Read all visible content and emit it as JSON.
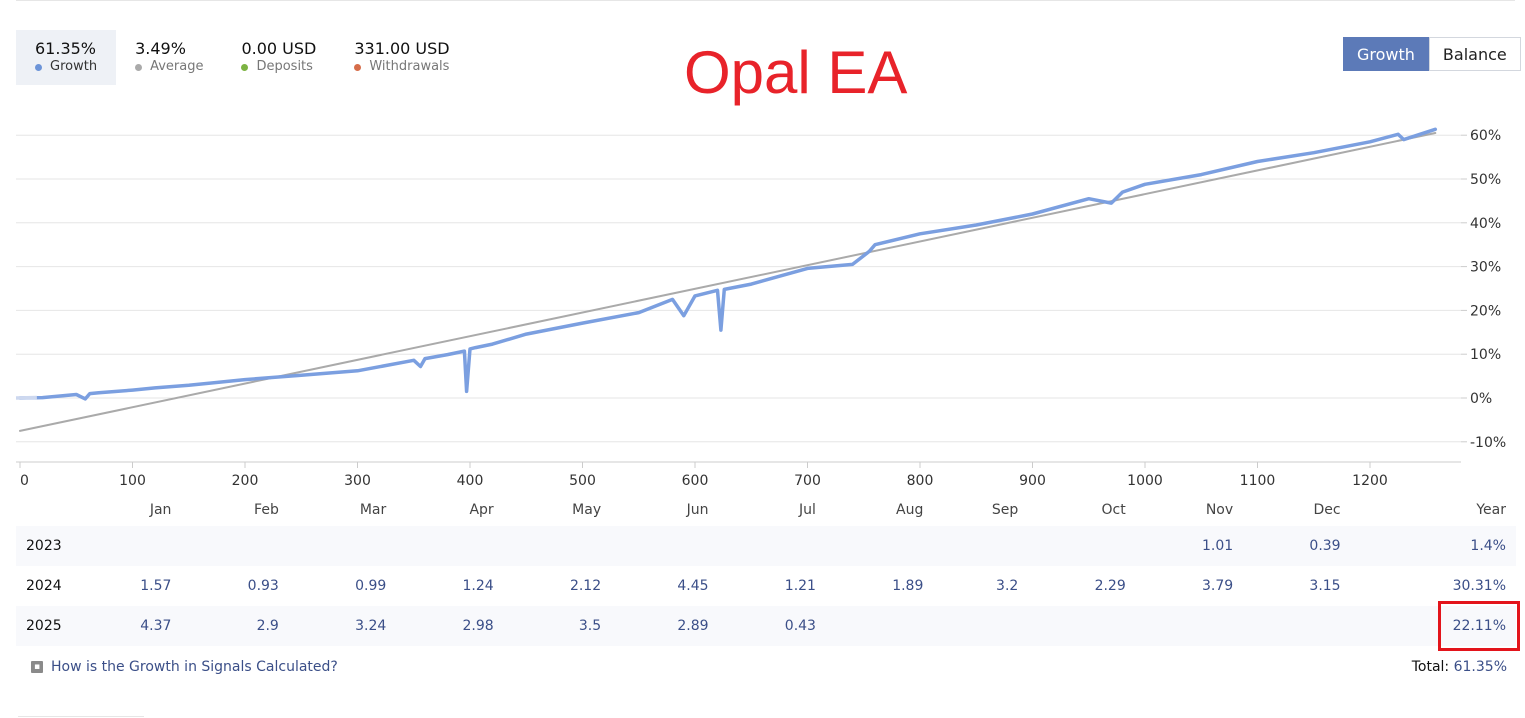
{
  "stats": [
    {
      "value": "61.35%",
      "label": "Growth",
      "color": "#6c94d8",
      "active": true
    },
    {
      "value": "3.49%",
      "label": "Average",
      "color": "#aaaaaa",
      "active": false
    },
    {
      "value": "0.00 USD",
      "label": "Deposits",
      "color": "#7cb342",
      "active": false
    },
    {
      "value": "331.00 USD",
      "label": "Withdrawals",
      "color": "#d66d4a",
      "active": false
    }
  ],
  "watermark": "Opal EA",
  "toggle": {
    "growth": "Growth",
    "balance": "Balance"
  },
  "chart_data": {
    "type": "line",
    "xlim": [
      0,
      1260
    ],
    "ylim": [
      -13,
      62
    ],
    "x_ticks": [
      0,
      100,
      200,
      300,
      400,
      500,
      600,
      700,
      800,
      900,
      1000,
      1100,
      1200
    ],
    "y_ticks": [
      60,
      50,
      40,
      30,
      20,
      10,
      0,
      -10
    ],
    "y_tick_labels": [
      "60%",
      "50%",
      "40%",
      "30%",
      "20%",
      "10%",
      "0%",
      "-10%"
    ],
    "grid": true,
    "series": [
      {
        "key": "growth",
        "color": "#7b9fe0",
        "x": [
          0,
          20,
          50,
          58,
          62,
          70,
          100,
          120,
          150,
          200,
          250,
          300,
          350,
          356,
          360,
          380,
          395,
          397,
          400,
          405,
          420,
          450,
          500,
          550,
          580,
          590,
          600,
          620,
          623,
          626,
          630,
          650,
          700,
          740,
          755,
          760,
          800,
          850,
          900,
          950,
          970,
          980,
          1000,
          1050,
          1100,
          1150,
          1200,
          1225,
          1230,
          1258
        ],
        "y": [
          0,
          0.1,
          0.8,
          -0.2,
          1.0,
          1.2,
          1.8,
          2.3,
          2.9,
          4.2,
          5.2,
          6.2,
          8.6,
          7.2,
          9.0,
          9.9,
          10.7,
          1.5,
          11.2,
          11.5,
          12.3,
          14.6,
          17.1,
          19.5,
          22.5,
          18.8,
          23.3,
          24.6,
          15.5,
          24.8,
          25.0,
          26.0,
          29.6,
          30.5,
          33.5,
          35.0,
          37.5,
          39.5,
          42.0,
          45.5,
          44.5,
          47.0,
          48.8,
          51.0,
          54.0,
          56.0,
          58.5,
          60.2,
          59.0,
          61.35
        ]
      },
      {
        "key": "average",
        "color": "#aaaaaa",
        "x": [
          0,
          1258
        ],
        "y": [
          -7.5,
          60.5
        ]
      }
    ]
  },
  "table": {
    "months": [
      "Jan",
      "Feb",
      "Mar",
      "Apr",
      "May",
      "Jun",
      "Jul",
      "Aug",
      "Sep",
      "Oct",
      "Nov",
      "Dec"
    ],
    "year_header": "Year",
    "rows": [
      {
        "year": "2023",
        "values": [
          "",
          "",
          "",
          "",
          "",
          "",
          "",
          "",
          "",
          "",
          "1.01",
          "0.39"
        ],
        "total": "1.4%"
      },
      {
        "year": "2024",
        "values": [
          "1.57",
          "0.93",
          "0.99",
          "1.24",
          "2.12",
          "4.45",
          "1.21",
          "1.89",
          "3.2",
          "2.29",
          "3.79",
          "3.15"
        ],
        "total": "30.31%"
      },
      {
        "year": "2025",
        "values": [
          "4.37",
          "2.9",
          "3.24",
          "2.98",
          "3.5",
          "2.89",
          "0.43",
          "",
          "",
          "",
          "",
          ""
        ],
        "total": "22.11%"
      }
    ]
  },
  "help_link": "How is the Growth in Signals Calculated?",
  "total": {
    "label": "Total:",
    "value": "61.35%"
  }
}
